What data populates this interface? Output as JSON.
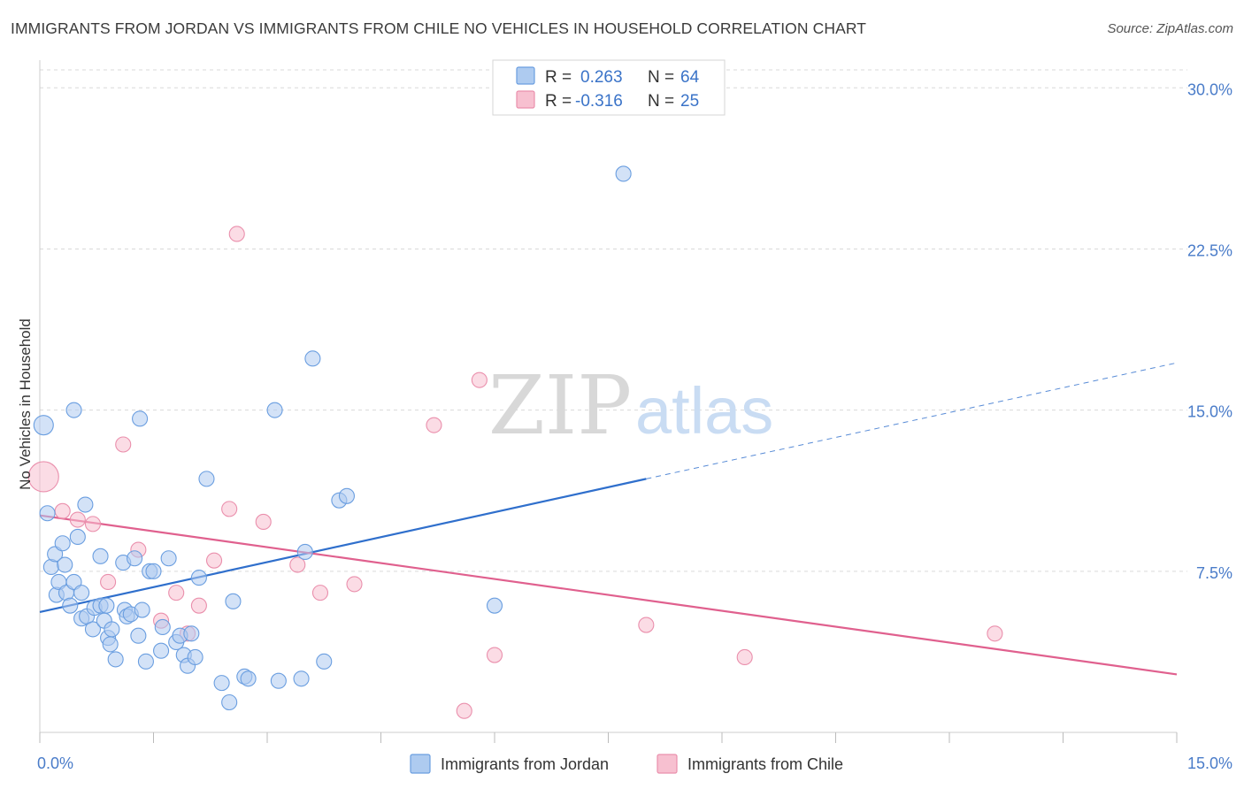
{
  "header": {
    "title": "IMMIGRANTS FROM JORDAN VS IMMIGRANTS FROM CHILE NO VEHICLES IN HOUSEHOLD CORRELATION CHART",
    "source": "Source: ZipAtlas.com"
  },
  "watermark": {
    "zip": "ZIP",
    "atlas": "atlas"
  },
  "legend_top": {
    "rows": [
      {
        "r_label": "R =",
        "r_value": "0.263",
        "n_label": "N =",
        "n_value": "64"
      },
      {
        "r_label": "R =",
        "r_value": "-0.316",
        "n_label": "N =",
        "n_value": "25"
      }
    ]
  },
  "colors": {
    "jordan_fill": "#aecbf0",
    "jordan_stroke": "#6a9ee0",
    "jordan_line": "#2f6fcc",
    "chile_fill": "#f7c0d0",
    "chile_stroke": "#ea8fac",
    "chile_line": "#e0608e",
    "grid": "#d9d9d9",
    "tick_text": "#4a7cc9"
  },
  "chart_data": {
    "type": "scatter",
    "title": "IMMIGRANTS FROM JORDAN VS IMMIGRANTS FROM CHILE NO VEHICLES IN HOUSEHOLD CORRELATION CHART",
    "xlabel": "",
    "ylabel": "No Vehicles in Household",
    "xlim": [
      0,
      15
    ],
    "ylim": [
      0,
      31
    ],
    "x_ticks": [
      "0.0%",
      "15.0%"
    ],
    "y_ticks": [
      {
        "value": 7.5,
        "label": "7.5%"
      },
      {
        "value": 15.0,
        "label": "15.0%"
      },
      {
        "value": 22.5,
        "label": "22.5%"
      },
      {
        "value": 30.0,
        "label": "30.0%"
      }
    ],
    "grid": true,
    "legend_placement": "top-center",
    "series": [
      {
        "name": "Immigrants from Jordan",
        "r": 0.263,
        "n": 64,
        "trend": {
          "x0": 0.0,
          "y0": 5.6,
          "x1": 8.0,
          "y1": 11.8,
          "dashed_to_x": 15.0,
          "dashed_to_y": 17.2
        },
        "points": [
          [
            0.05,
            14.3
          ],
          [
            0.1,
            10.2
          ],
          [
            0.15,
            7.7
          ],
          [
            0.2,
            8.3
          ],
          [
            0.22,
            6.4
          ],
          [
            0.25,
            7.0
          ],
          [
            0.3,
            8.8
          ],
          [
            0.33,
            7.8
          ],
          [
            0.35,
            6.5
          ],
          [
            0.4,
            5.9
          ],
          [
            0.45,
            7.0
          ],
          [
            0.45,
            15.0
          ],
          [
            0.5,
            9.1
          ],
          [
            0.55,
            6.5
          ],
          [
            0.55,
            5.3
          ],
          [
            0.6,
            10.6
          ],
          [
            0.62,
            5.4
          ],
          [
            0.7,
            4.8
          ],
          [
            0.72,
            5.8
          ],
          [
            0.8,
            8.2
          ],
          [
            0.8,
            5.9
          ],
          [
            0.85,
            5.2
          ],
          [
            0.88,
            5.9
          ],
          [
            0.9,
            4.4
          ],
          [
            0.93,
            4.1
          ],
          [
            0.95,
            4.8
          ],
          [
            1.0,
            3.4
          ],
          [
            1.1,
            7.9
          ],
          [
            1.12,
            5.7
          ],
          [
            1.15,
            5.4
          ],
          [
            1.2,
            5.5
          ],
          [
            1.3,
            4.5
          ],
          [
            1.32,
            14.6
          ],
          [
            1.35,
            5.7
          ],
          [
            1.4,
            3.3
          ],
          [
            1.45,
            7.5
          ],
          [
            1.5,
            7.5
          ],
          [
            1.6,
            3.8
          ],
          [
            1.62,
            4.9
          ],
          [
            1.7,
            8.1
          ],
          [
            1.8,
            4.2
          ],
          [
            1.85,
            4.5
          ],
          [
            1.9,
            3.6
          ],
          [
            1.95,
            3.1
          ],
          [
            2.0,
            4.6
          ],
          [
            2.05,
            3.5
          ],
          [
            2.1,
            7.2
          ],
          [
            2.2,
            11.8
          ],
          [
            2.4,
            2.3
          ],
          [
            2.5,
            1.4
          ],
          [
            2.55,
            6.1
          ],
          [
            2.7,
            2.6
          ],
          [
            2.75,
            2.5
          ],
          [
            3.1,
            15.0
          ],
          [
            3.15,
            2.4
          ],
          [
            3.45,
            2.5
          ],
          [
            3.5,
            8.4
          ],
          [
            3.6,
            17.4
          ],
          [
            3.75,
            3.3
          ],
          [
            3.95,
            10.8
          ],
          [
            4.05,
            11.0
          ],
          [
            6.0,
            5.9
          ],
          [
            7.7,
            26.0
          ],
          [
            1.25,
            8.1
          ]
        ]
      },
      {
        "name": "Immigrants from Chile",
        "r": -0.316,
        "n": 25,
        "trend": {
          "x0": 0.0,
          "y0": 10.1,
          "x1": 15.0,
          "y1": 2.7
        },
        "points": [
          [
            0.05,
            11.9
          ],
          [
            0.3,
            10.3
          ],
          [
            0.5,
            9.9
          ],
          [
            0.7,
            9.7
          ],
          [
            0.9,
            7.0
          ],
          [
            1.1,
            13.4
          ],
          [
            1.3,
            8.5
          ],
          [
            1.6,
            5.2
          ],
          [
            1.8,
            6.5
          ],
          [
            1.95,
            4.6
          ],
          [
            2.1,
            5.9
          ],
          [
            2.3,
            8.0
          ],
          [
            2.5,
            10.4
          ],
          [
            2.6,
            23.2
          ],
          [
            2.95,
            9.8
          ],
          [
            3.4,
            7.8
          ],
          [
            3.7,
            6.5
          ],
          [
            4.15,
            6.9
          ],
          [
            5.2,
            14.3
          ],
          [
            5.6,
            1.0
          ],
          [
            5.8,
            16.4
          ],
          [
            6.0,
            3.6
          ],
          [
            8.0,
            5.0
          ],
          [
            9.3,
            3.5
          ],
          [
            12.6,
            4.6
          ]
        ]
      }
    ]
  },
  "bottom_legend": {
    "items": [
      {
        "label": "Immigrants from Jordan"
      },
      {
        "label": "Immigrants from Chile"
      }
    ]
  }
}
